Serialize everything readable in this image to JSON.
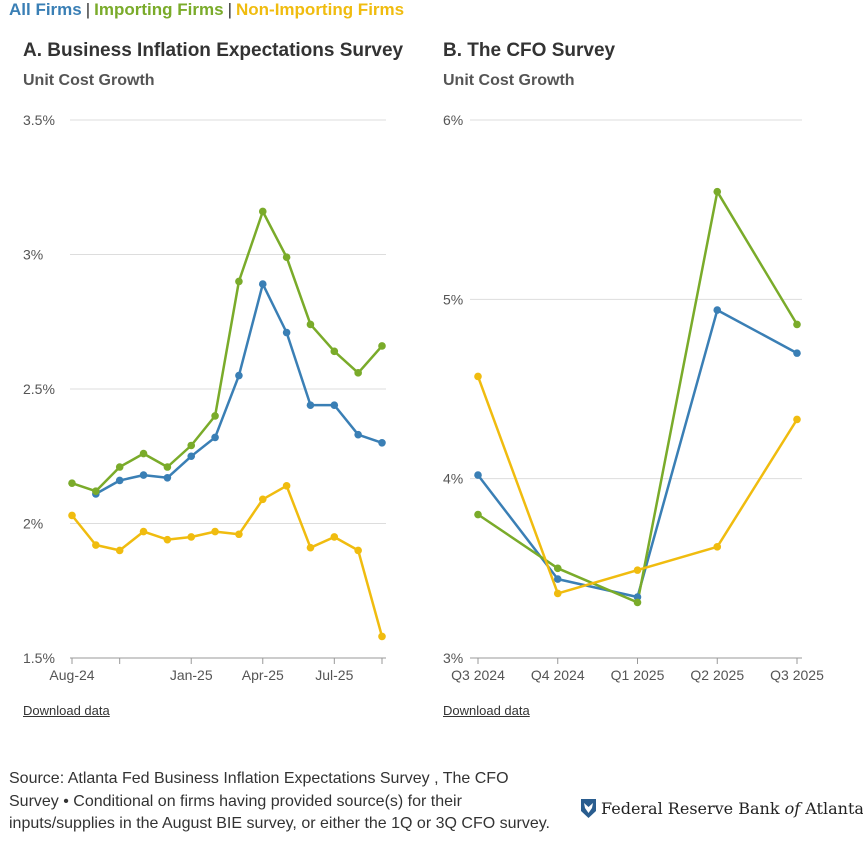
{
  "legend": {
    "items": [
      {
        "label": "All Firms",
        "color": "#3a7fb5"
      },
      {
        "label": "Importing Firms",
        "color": "#7aab2a"
      },
      {
        "label": "Non-Importing Firms",
        "color": "#f0bc0f"
      }
    ],
    "separator": "|"
  },
  "colors": {
    "grid": "#dddddd",
    "axis": "#999999",
    "text": "#555555"
  },
  "chart_data": [
    {
      "type": "line",
      "title": "A. Business Inflation Expectations Survey",
      "subtitle": "Unit Cost Growth",
      "x": [
        "Aug-24",
        "Sep-24",
        "Oct-24",
        "Nov-24",
        "Dec-24",
        "Jan-25",
        "Feb-25",
        "Mar-25",
        "Apr-25",
        "May-25",
        "Jun-25",
        "Jul-25",
        "Aug-25",
        "Sep-25"
      ],
      "x_tick_labels": [
        "Aug-24",
        "",
        "",
        "",
        "",
        "Jan-25",
        "",
        "",
        "Apr-25",
        "",
        "",
        "Jul-25",
        "",
        ""
      ],
      "x_tick_marks": [
        0,
        2,
        5,
        8,
        11,
        13
      ],
      "ylim": [
        1.5,
        3.5
      ],
      "y_ticks": [
        1.5,
        2,
        2.5,
        3,
        3.5
      ],
      "y_tick_labels": [
        "1.5%",
        "2%",
        "2.5%",
        "3%",
        "3.5%"
      ],
      "grid": true,
      "download_label": "Download data",
      "series": [
        {
          "name": "All Firms",
          "color": "#3a7fb5",
          "values": [
            null,
            2.11,
            2.16,
            2.18,
            2.17,
            2.25,
            2.32,
            2.55,
            2.89,
            2.71,
            2.44,
            2.44,
            2.33,
            2.3
          ]
        },
        {
          "name": "Importing Firms",
          "color": "#7aab2a",
          "values": [
            2.15,
            2.12,
            2.21,
            2.26,
            2.21,
            2.29,
            2.4,
            2.9,
            3.16,
            2.99,
            2.74,
            2.64,
            2.56,
            2.66
          ]
        },
        {
          "name": "Non-Importing Firms",
          "color": "#f0bc0f",
          "values": [
            2.03,
            1.92,
            1.9,
            1.97,
            1.94,
            1.95,
            1.97,
            1.96,
            2.09,
            2.14,
            1.91,
            1.95,
            1.9,
            1.58
          ]
        }
      ]
    },
    {
      "type": "line",
      "title": "B. The CFO Survey",
      "subtitle": "Unit Cost Growth",
      "x": [
        "Q3 2024",
        "Q4 2024",
        "Q1 2025",
        "Q2 2025",
        "Q3 2025"
      ],
      "x_tick_labels": [
        "Q3 2024",
        "Q4 2024",
        "Q1 2025",
        "Q2 2025",
        "Q3 2025"
      ],
      "x_tick_marks": [
        0,
        1,
        2,
        3,
        4
      ],
      "ylim": [
        3,
        6
      ],
      "y_ticks": [
        3,
        4,
        5,
        6
      ],
      "y_tick_labels": [
        "3%",
        "4%",
        "5%",
        "6%"
      ],
      "grid": true,
      "download_label": "Download data",
      "series": [
        {
          "name": "All Firms",
          "color": "#3a7fb5",
          "values": [
            4.02,
            3.44,
            3.34,
            4.94,
            4.7
          ]
        },
        {
          "name": "Importing Firms",
          "color": "#7aab2a",
          "values": [
            3.8,
            3.5,
            3.31,
            5.6,
            4.86
          ]
        },
        {
          "name": "Non-Importing Firms",
          "color": "#f0bc0f",
          "values": [
            4.57,
            3.36,
            3.49,
            3.62,
            4.33
          ]
        }
      ]
    }
  ],
  "footer": {
    "source": "Source: Atlanta Fed Business Inflation Expectations Survey , The CFO Survey • Conditional on firms having provided source(s) for their inputs/supplies in the August BIE survey, or either the 1Q or 3Q CFO survey.",
    "logo_pre": "Federal Reserve Bank",
    "logo_of": "of",
    "logo_post": "Atlanta"
  }
}
